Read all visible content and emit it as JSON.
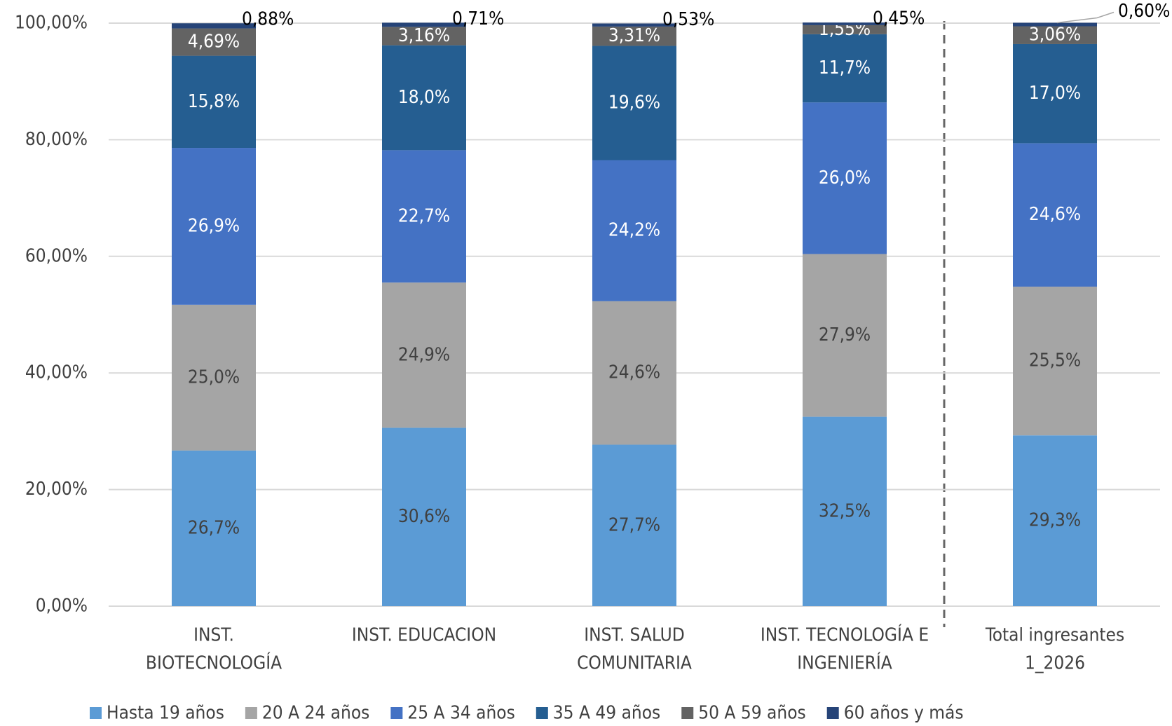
{
  "chart_data": {
    "type": "stacked_bar",
    "categories": [
      [
        "INST.",
        "BIOTECNOLOGÍA"
      ],
      [
        "INST. EDUCACION"
      ],
      [
        "INST. SALUD",
        "COMUNITARIA"
      ],
      [
        "INST. TECNOLOGÍA E",
        "INGENIERÍA"
      ],
      [
        "Total ingresantes",
        "1_2026"
      ]
    ],
    "series": [
      {
        "name": "Hasta 19 años",
        "color": "#5b9bd5",
        "values": [
          26.7,
          30.6,
          27.7,
          32.5,
          29.3
        ],
        "value_labels": [
          "26,7%",
          "30,6%",
          "27,7%",
          "32,5%",
          "29,3%"
        ]
      },
      {
        "name": "20 A 24 años",
        "color": "#a5a5a5",
        "values": [
          25.0,
          24.9,
          24.6,
          27.9,
          25.5
        ],
        "value_labels": [
          "25,0%",
          "24,9%",
          "24,6%",
          "27,9%",
          "25,5%"
        ]
      },
      {
        "name": "25 A 34 años",
        "color": "#4472c4",
        "values": [
          26.9,
          22.7,
          24.2,
          26.0,
          24.6
        ],
        "value_labels": [
          "26,9%",
          "22,7%",
          "24,2%",
          "26,0%",
          "24,6%"
        ]
      },
      {
        "name": "35 A 49 años",
        "color": "#255e91",
        "values": [
          15.8,
          18.0,
          19.6,
          11.7,
          17.0
        ],
        "value_labels": [
          "15,8%",
          "18,0%",
          "19,6%",
          "11,7%",
          "17,0%"
        ]
      },
      {
        "name": "50 A 59 años",
        "color": "#636363",
        "values": [
          4.69,
          3.16,
          3.31,
          1.55,
          3.06
        ],
        "value_labels": [
          "4,69%",
          "3,16%",
          "3,31%",
          "1,55%",
          "3,06%"
        ]
      },
      {
        "name": "60 años y más",
        "color": "#264478",
        "values": [
          0.88,
          0.71,
          0.53,
          0.45,
          0.6
        ],
        "value_labels": [
          "0,88%",
          "0,71%",
          "0,53%",
          "0,45%",
          "0,60%"
        ]
      }
    ],
    "ylim": [
      0,
      100
    ],
    "yticks": [
      {
        "value": 0,
        "label": "0,00%"
      },
      {
        "value": 20,
        "label": "20,00%"
      },
      {
        "value": 40,
        "label": "40,00%"
      },
      {
        "value": 60,
        "label": "60,00%"
      },
      {
        "value": 80,
        "label": "80,00%"
      },
      {
        "value": 100,
        "label": "100,00%"
      }
    ],
    "grid": true,
    "legend": "bottom"
  }
}
